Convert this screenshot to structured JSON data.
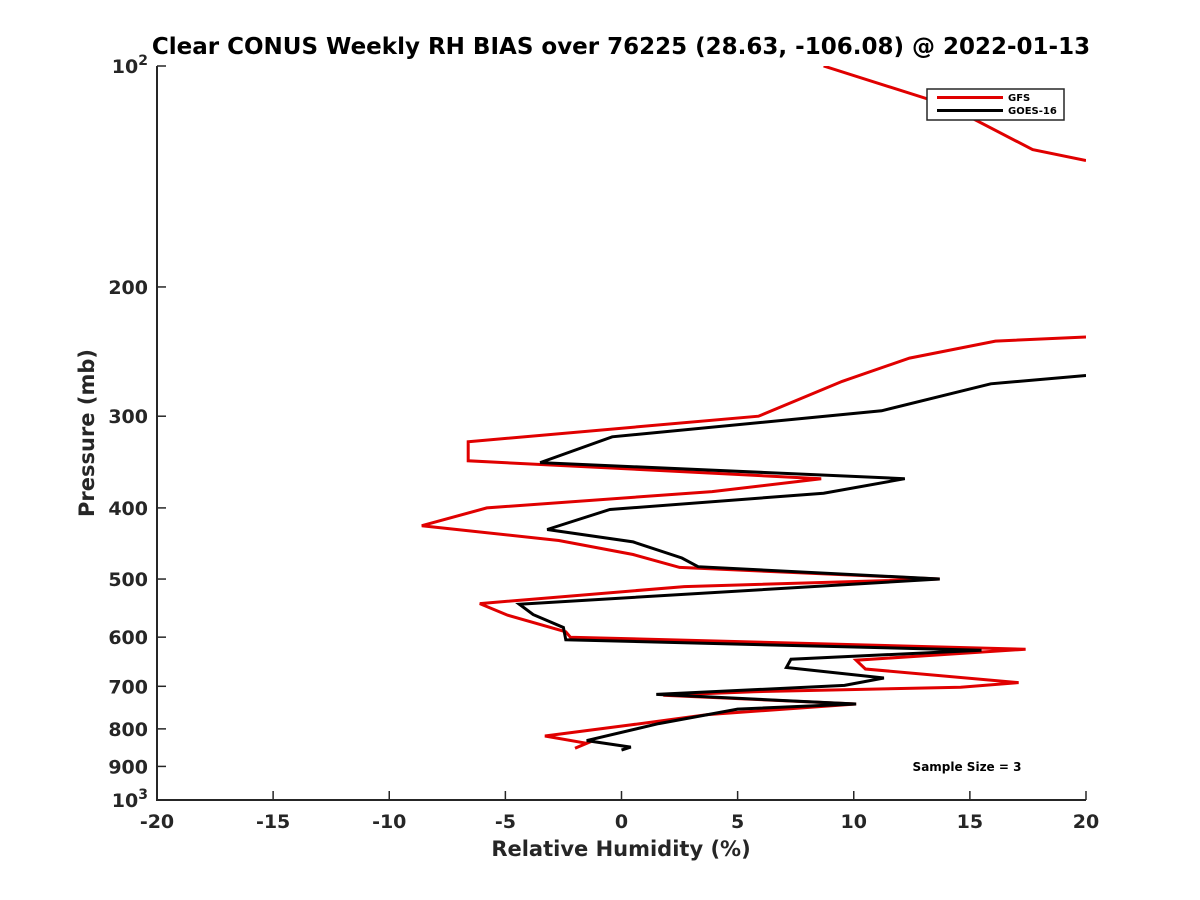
{
  "chart_data": {
    "type": "line",
    "title": "Clear CONUS Weekly RH BIAS over 76225 (28.63, -106.08) @ 2022-01-13",
    "xlabel": "Relative Humidity (%)",
    "ylabel": "Pressure (mb)",
    "xlim": [
      -20,
      20
    ],
    "ylim": [
      100,
      1000
    ],
    "y_scale": "log",
    "y_reversed": true,
    "x_ticks": [
      "-20",
      "-15",
      "-10",
      "-5",
      "0",
      "5",
      "10",
      "15",
      "20"
    ],
    "y_ticks": [
      {
        "value": 100,
        "base": "10",
        "exp": "2"
      },
      {
        "value": 200,
        "label": "200"
      },
      {
        "value": 300,
        "label": "300"
      },
      {
        "value": 400,
        "label": "400"
      },
      {
        "value": 500,
        "label": "500"
      },
      {
        "value": 600,
        "label": "600"
      },
      {
        "value": 700,
        "label": "700"
      },
      {
        "value": 800,
        "label": "800"
      },
      {
        "value": 900,
        "label": "900"
      },
      {
        "value": 1000,
        "base": "10",
        "exp": "3"
      }
    ],
    "grid": false,
    "legend": "top-right",
    "annotation": "Sample Size = 3",
    "series": [
      {
        "name": "GFS",
        "color": "#e00000",
        "points": [
          [
            8.7,
            100
          ],
          [
            14,
            113
          ],
          [
            17.7,
            130
          ],
          [
            20,
            134.5
          ],
          null,
          [
            20,
            234
          ],
          [
            16.1,
            237
          ],
          [
            12.4,
            250
          ],
          [
            9.5,
            269
          ],
          [
            5.9,
            300
          ],
          [
            -6.6,
            325
          ],
          [
            -6.6,
            345
          ],
          [
            8.6,
            365
          ],
          [
            3.9,
            380
          ],
          [
            -5.8,
            400
          ],
          [
            -8.6,
            423
          ],
          [
            -2.7,
            443
          ],
          [
            0.5,
            463
          ],
          [
            2.5,
            482
          ],
          [
            13.7,
            500
          ],
          [
            2.7,
            512
          ],
          [
            -6.1,
            540
          ],
          [
            -4.9,
            560
          ],
          [
            -2.4,
            590
          ],
          [
            -2.2,
            600
          ],
          [
            17.4,
            623
          ],
          [
            10.1,
            645
          ],
          [
            10.5,
            663
          ],
          [
            17.1,
            692
          ],
          [
            14.6,
            702
          ],
          [
            5.7,
            712
          ],
          [
            1.8,
            720
          ],
          [
            10.1,
            740
          ],
          [
            3.7,
            765
          ],
          [
            0.4,
            790
          ],
          [
            -3.3,
            818
          ],
          [
            -1.5,
            837
          ],
          [
            -2,
            850
          ]
        ]
      },
      {
        "name": "GOES-16",
        "color": "#000000",
        "points": [
          [
            20,
            264
          ],
          [
            15.9,
            271
          ],
          [
            11.2,
            295
          ],
          [
            -0.4,
            320
          ],
          [
            -3.5,
            347
          ],
          [
            12.2,
            365
          ],
          [
            8.7,
            382
          ],
          [
            -0.5,
            402
          ],
          [
            -3.2,
            428
          ],
          [
            0.5,
            445
          ],
          [
            2.6,
            468
          ],
          [
            3.3,
            481
          ],
          [
            13.7,
            500
          ],
          [
            -4.4,
            541
          ],
          [
            -3.8,
            559
          ],
          [
            -2.5,
            582
          ],
          [
            -2.4,
            605
          ],
          [
            15.5,
            625
          ],
          [
            7.3,
            643
          ],
          [
            7.1,
            660
          ],
          [
            11.3,
            682
          ],
          [
            9.6,
            698
          ],
          [
            1.5,
            718
          ],
          [
            10.1,
            740
          ],
          [
            5,
            752
          ],
          [
            1.6,
            787
          ],
          [
            -1.5,
            830
          ],
          [
            0.4,
            847
          ],
          [
            0,
            855
          ]
        ]
      }
    ]
  }
}
